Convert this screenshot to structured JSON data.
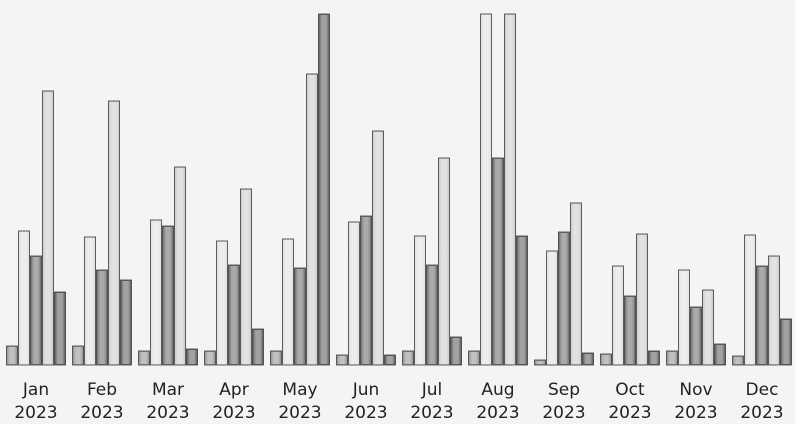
{
  "chart_data": {
    "type": "bar",
    "categories": [
      [
        "Jan",
        "2023"
      ],
      [
        "Feb",
        "2023"
      ],
      [
        "Mar",
        "2023"
      ],
      [
        "Apr",
        "2023"
      ],
      [
        "May",
        "2023"
      ],
      [
        "Jun",
        "2023"
      ],
      [
        "Jul",
        "2023"
      ],
      [
        "Aug",
        "2023"
      ],
      [
        "Sep",
        "2023"
      ],
      [
        "Oct",
        "2023"
      ],
      [
        "Nov",
        "2023"
      ],
      [
        "Dec",
        "2023"
      ]
    ],
    "series": [
      {
        "values": [
          19,
          19,
          14,
          14,
          14,
          10,
          14,
          14,
          5,
          11,
          14,
          9
        ],
        "color": "#9a9a9a"
      },
      {
        "values": [
          134,
          128,
          145,
          124,
          126,
          143,
          129,
          351,
          114,
          99,
          95,
          130
        ],
        "color": "#e2e2e2"
      },
      {
        "values": [
          109,
          95,
          139,
          100,
          97,
          149,
          100,
          207,
          133,
          69,
          58,
          99
        ],
        "color": "#777777"
      },
      {
        "values": [
          274,
          264,
          198,
          176,
          291,
          234,
          207,
          351,
          162,
          131,
          75,
          109
        ],
        "color": "#d0d0d0"
      },
      {
        "values": [
          73,
          85,
          16,
          36,
          351,
          10,
          28,
          129,
          12,
          14,
          21,
          46
        ],
        "color": "#6a6a6a"
      }
    ],
    "ylim": [
      0,
      351
    ],
    "grid": false,
    "legend": "none",
    "title": "",
    "xlabel": "",
    "ylabel": ""
  }
}
